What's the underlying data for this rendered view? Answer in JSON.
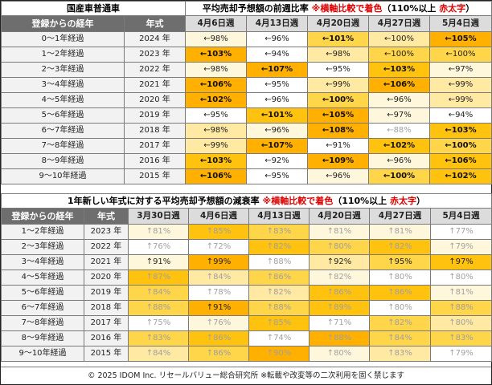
{
  "table1": {
    "title_left": "国産車普通車",
    "title_main": "平均売却予想額の前週比率",
    "title_note": "※横軸比較で着色",
    "title_paren": "（110%以上",
    "title_red": "赤太字",
    "title_close": "）",
    "col_age": "登録からの経年",
    "col_year": "年式",
    "dates": [
      "4月6日週",
      "4月13日週",
      "4月20日週",
      "4月27日週",
      "5月4日週"
    ],
    "rows": [
      {
        "age": "0～1年経過",
        "year": "2024 年",
        "cells": [
          {
            "t": "←98%",
            "c": "c1",
            "s": "normal"
          },
          {
            "t": "←96%",
            "c": "",
            "s": "normal"
          },
          {
            "t": "←101%",
            "c": "c3",
            "s": "bold"
          },
          {
            "t": "←100%",
            "c": "c2",
            "s": "normal"
          },
          {
            "t": "←105%",
            "c": "c5",
            "s": "bold"
          }
        ]
      },
      {
        "age": "1～2年経過",
        "year": "2023 年",
        "cells": [
          {
            "t": "←103%",
            "c": "c5",
            "s": "bold"
          },
          {
            "t": "←94%",
            "c": "",
            "s": "normal"
          },
          {
            "t": "←98%",
            "c": "c2",
            "s": "normal"
          },
          {
            "t": "←100%",
            "c": "c3",
            "s": "normal"
          },
          {
            "t": "←100%",
            "c": "c3",
            "s": "normal"
          }
        ]
      },
      {
        "age": "2～3年経過",
        "year": "2022 年",
        "cells": [
          {
            "t": "←98%",
            "c": "c1",
            "s": "normal"
          },
          {
            "t": "←107%",
            "c": "c5",
            "s": "bold"
          },
          {
            "t": "←95%",
            "c": "",
            "s": "normal"
          },
          {
            "t": "←103%",
            "c": "c4",
            "s": "bold"
          },
          {
            "t": "←97%",
            "c": "c1",
            "s": "normal"
          }
        ]
      },
      {
        "age": "3～4年経過",
        "year": "2021 年",
        "cells": [
          {
            "t": "←106%",
            "c": "c5",
            "s": "bold"
          },
          {
            "t": "←95%",
            "c": "",
            "s": "normal"
          },
          {
            "t": "←99%",
            "c": "c2",
            "s": "normal"
          },
          {
            "t": "←106%",
            "c": "c5",
            "s": "bold"
          },
          {
            "t": "←99%",
            "c": "c2",
            "s": "normal"
          }
        ]
      },
      {
        "age": "4～5年経過",
        "year": "2020 年",
        "cells": [
          {
            "t": "←102%",
            "c": "c5",
            "s": "bold"
          },
          {
            "t": "←96%",
            "c": "",
            "s": "normal"
          },
          {
            "t": "←100%",
            "c": "c3",
            "s": "bold"
          },
          {
            "t": "←96%",
            "c": "c1",
            "s": "normal"
          },
          {
            "t": "←99%",
            "c": "c2",
            "s": "normal"
          }
        ]
      },
      {
        "age": "5～6年経過",
        "year": "2019 年",
        "cells": [
          {
            "t": "←95%",
            "c": "",
            "s": "normal"
          },
          {
            "t": "←101%",
            "c": "c4",
            "s": "bold"
          },
          {
            "t": "←105%",
            "c": "c5",
            "s": "bold"
          },
          {
            "t": "←97%",
            "c": "c1",
            "s": "normal"
          },
          {
            "t": "←94%",
            "c": "",
            "s": "normal"
          }
        ]
      },
      {
        "age": "6～7年経過",
        "year": "2018 年",
        "cells": [
          {
            "t": "←98%",
            "c": "c2",
            "s": "normal"
          },
          {
            "t": "←96%",
            "c": "c1",
            "s": "normal"
          },
          {
            "t": "←108%",
            "c": "c5",
            "s": "bold"
          },
          {
            "t": "←88%",
            "c": "",
            "s": "light"
          },
          {
            "t": "←103%",
            "c": "c4",
            "s": "bold"
          }
        ]
      },
      {
        "age": "7～8年経過",
        "year": "2017 年",
        "cells": [
          {
            "t": "←99%",
            "c": "c2",
            "s": "normal"
          },
          {
            "t": "←107%",
            "c": "c5",
            "s": "bold"
          },
          {
            "t": "←91%",
            "c": "",
            "s": "normal"
          },
          {
            "t": "←102%",
            "c": "c4",
            "s": "bold"
          },
          {
            "t": "←100%",
            "c": "c3",
            "s": "bold"
          }
        ]
      },
      {
        "age": "8～9年経過",
        "year": "2016 年",
        "cells": [
          {
            "t": "←103%",
            "c": "c4",
            "s": "bold"
          },
          {
            "t": "←92%",
            "c": "",
            "s": "normal"
          },
          {
            "t": "←109%",
            "c": "c5",
            "s": "bold"
          },
          {
            "t": "←96%",
            "c": "c1",
            "s": "normal"
          },
          {
            "t": "←106%",
            "c": "c4",
            "s": "bold"
          }
        ]
      },
      {
        "age": "9～10年経過",
        "year": "2015 年",
        "cells": [
          {
            "t": "←106%",
            "c": "c5",
            "s": "bold"
          },
          {
            "t": "←95%",
            "c": "",
            "s": "normal"
          },
          {
            "t": "←96%",
            "c": "c1",
            "s": "normal"
          },
          {
            "t": "←100%",
            "c": "c3",
            "s": "bold"
          },
          {
            "t": "←102%",
            "c": "c4",
            "s": "bold"
          }
        ]
      }
    ]
  },
  "table2": {
    "title_main": "1年新しい年式に対する平均売却予想額の減衰率",
    "title_note": "※横軸比較で着色",
    "title_paren": "（110%以上",
    "title_red": "赤太字",
    "title_close": "）",
    "col_age": "登録からの経年",
    "col_year": "年式",
    "dates": [
      "3月30日週",
      "4月6日週",
      "4月13日週",
      "4月20日週",
      "4月27日週",
      "5月4日週"
    ],
    "rows": [
      {
        "age": "1～2年経過",
        "year": "2023 年",
        "cells": [
          {
            "t": "↑81%",
            "c": "c1",
            "s": "light"
          },
          {
            "t": "↑85%",
            "c": "c4",
            "s": "light"
          },
          {
            "t": "↑83%",
            "c": "c3",
            "s": "light"
          },
          {
            "t": "↑81%",
            "c": "c1",
            "s": "light"
          },
          {
            "t": "↑81%",
            "c": "c1",
            "s": "light"
          },
          {
            "t": "↑77%",
            "c": "",
            "s": "light"
          }
        ]
      },
      {
        "age": "2～3年経過",
        "year": "2022 年",
        "cells": [
          {
            "t": "↑76%",
            "c": "",
            "s": "light"
          },
          {
            "t": "↑72%",
            "c": "",
            "s": "light"
          },
          {
            "t": "↑82%",
            "c": "c4",
            "s": "light"
          },
          {
            "t": "↑80%",
            "c": "c3",
            "s": "light"
          },
          {
            "t": "↑82%",
            "c": "c4",
            "s": "light"
          },
          {
            "t": "↑79%",
            "c": "c1",
            "s": "light"
          }
        ]
      },
      {
        "age": "3～4年経過",
        "year": "2021 年",
        "cells": [
          {
            "t": "↑91%",
            "c": "c1",
            "s": "normal"
          },
          {
            "t": "↑99%",
            "c": "c5",
            "s": "normal"
          },
          {
            "t": "↑88%",
            "c": "",
            "s": "light"
          },
          {
            "t": "↑92%",
            "c": "c2",
            "s": "normal"
          },
          {
            "t": "↑95%",
            "c": "c3",
            "s": "normal"
          },
          {
            "t": "↑97%",
            "c": "c4",
            "s": "normal"
          }
        ]
      },
      {
        "age": "4～5年経過",
        "year": "2020 年",
        "cells": [
          {
            "t": "↑87%",
            "c": "c4",
            "s": "light"
          },
          {
            "t": "↑84%",
            "c": "c2",
            "s": "light"
          },
          {
            "t": "↑86%",
            "c": "c3",
            "s": "light"
          },
          {
            "t": "↑82%",
            "c": "c1",
            "s": "light"
          },
          {
            "t": "↑80%",
            "c": "",
            "s": "light"
          },
          {
            "t": "↑80%",
            "c": "",
            "s": "light"
          }
        ]
      },
      {
        "age": "5～6年経過",
        "year": "2019 年",
        "cells": [
          {
            "t": "↑84%",
            "c": "c3",
            "s": "light"
          },
          {
            "t": "↑78%",
            "c": "",
            "s": "light"
          },
          {
            "t": "↑82%",
            "c": "c2",
            "s": "light"
          },
          {
            "t": "↑86%",
            "c": "c4",
            "s": "light"
          },
          {
            "t": "↑86%",
            "c": "c4",
            "s": "light"
          },
          {
            "t": "↑81%",
            "c": "c1",
            "s": "light"
          }
        ]
      },
      {
        "age": "6～7年経過",
        "year": "2018 年",
        "cells": [
          {
            "t": "↑88%",
            "c": "c3",
            "s": "light"
          },
          {
            "t": "↑91%",
            "c": "c5",
            "s": "normal"
          },
          {
            "t": "↑88%",
            "c": "c3",
            "s": "light"
          },
          {
            "t": "↑89%",
            "c": "c4",
            "s": "light"
          },
          {
            "t": "↑80%",
            "c": "",
            "s": "light"
          },
          {
            "t": "↑88%",
            "c": "c3",
            "s": "light"
          }
        ]
      },
      {
        "age": "7～8年経過",
        "year": "2017 年",
        "cells": [
          {
            "t": "↑75%",
            "c": "",
            "s": "light"
          },
          {
            "t": "↑76%",
            "c": "c1",
            "s": "light"
          },
          {
            "t": "↑85%",
            "c": "c4",
            "s": "light"
          },
          {
            "t": "↑71%",
            "c": "",
            "s": "light"
          },
          {
            "t": "↑82%",
            "c": "c3",
            "s": "light"
          },
          {
            "t": "↑80%",
            "c": "c2",
            "s": "light"
          }
        ]
      },
      {
        "age": "8～9年経過",
        "year": "2016 年",
        "cells": [
          {
            "t": "↑83%",
            "c": "c3",
            "s": "light"
          },
          {
            "t": "↑86%",
            "c": "c4",
            "s": "light"
          },
          {
            "t": "↑74%",
            "c": "",
            "s": "light"
          },
          {
            "t": "↑88%",
            "c": "c5",
            "s": "light"
          },
          {
            "t": "↑84%",
            "c": "c3",
            "s": "light"
          },
          {
            "t": "↑83%",
            "c": "c3",
            "s": "light"
          }
        ]
      },
      {
        "age": "9～10年経過",
        "year": "2015 年",
        "cells": [
          {
            "t": "↑84%",
            "c": "c2",
            "s": "light"
          },
          {
            "t": "↑86%",
            "c": "c3",
            "s": "light"
          },
          {
            "t": "↑90%",
            "c": "c5",
            "s": "light"
          },
          {
            "t": "↑80%",
            "c": "c1",
            "s": "light"
          },
          {
            "t": "↑83%",
            "c": "c2",
            "s": "light"
          },
          {
            "t": "↑79%",
            "c": "",
            "s": "light"
          }
        ]
      }
    ]
  },
  "footer": "© 2025 IDOM Inc. リセールバリュー総合研究所 ※転載や改変等の二次利用を固く禁じます",
  "colors": {
    "header_gray": "#6e6e6e",
    "date_header": "#dcdcdc",
    "highlight_light": "#fff7dc",
    "highlight_mid": "#ffd54a",
    "highlight_strong": "#ffb000",
    "red_note": "#e00000"
  }
}
